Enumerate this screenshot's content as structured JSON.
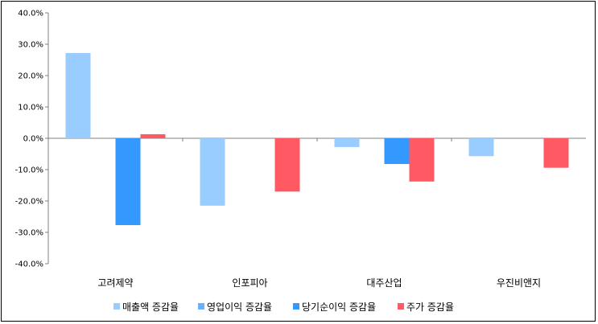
{
  "chart_data": {
    "type": "bar",
    "categories": [
      "고려제약",
      "인포피아",
      "대주산업",
      "우진비앤지"
    ],
    "series": [
      {
        "name": "매출액 증감율",
        "color": "#99ccff",
        "values": [
          27.2,
          -21.5,
          -2.8,
          -5.7
        ]
      },
      {
        "name": "영업이익 증감율",
        "color": "#66b2ff",
        "values": [
          null,
          null,
          null,
          null
        ]
      },
      {
        "name": "당기순이익 증감율",
        "color": "#3399ff",
        "values": [
          -27.7,
          null,
          -8.2,
          null
        ]
      },
      {
        "name": "주가 증감율",
        "color": "#ff5a64",
        "values": [
          1.3,
          -17.0,
          -13.8,
          -9.4
        ]
      }
    ],
    "yticks": [
      "40.0%",
      "30.0%",
      "20.0%",
      "10.0%",
      "0.0%",
      "-10.0%",
      "-20.0%",
      "-30.0%",
      "-40.0%"
    ],
    "ylim": [
      -40,
      40
    ],
    "grid": false,
    "legend_position": "bottom"
  }
}
